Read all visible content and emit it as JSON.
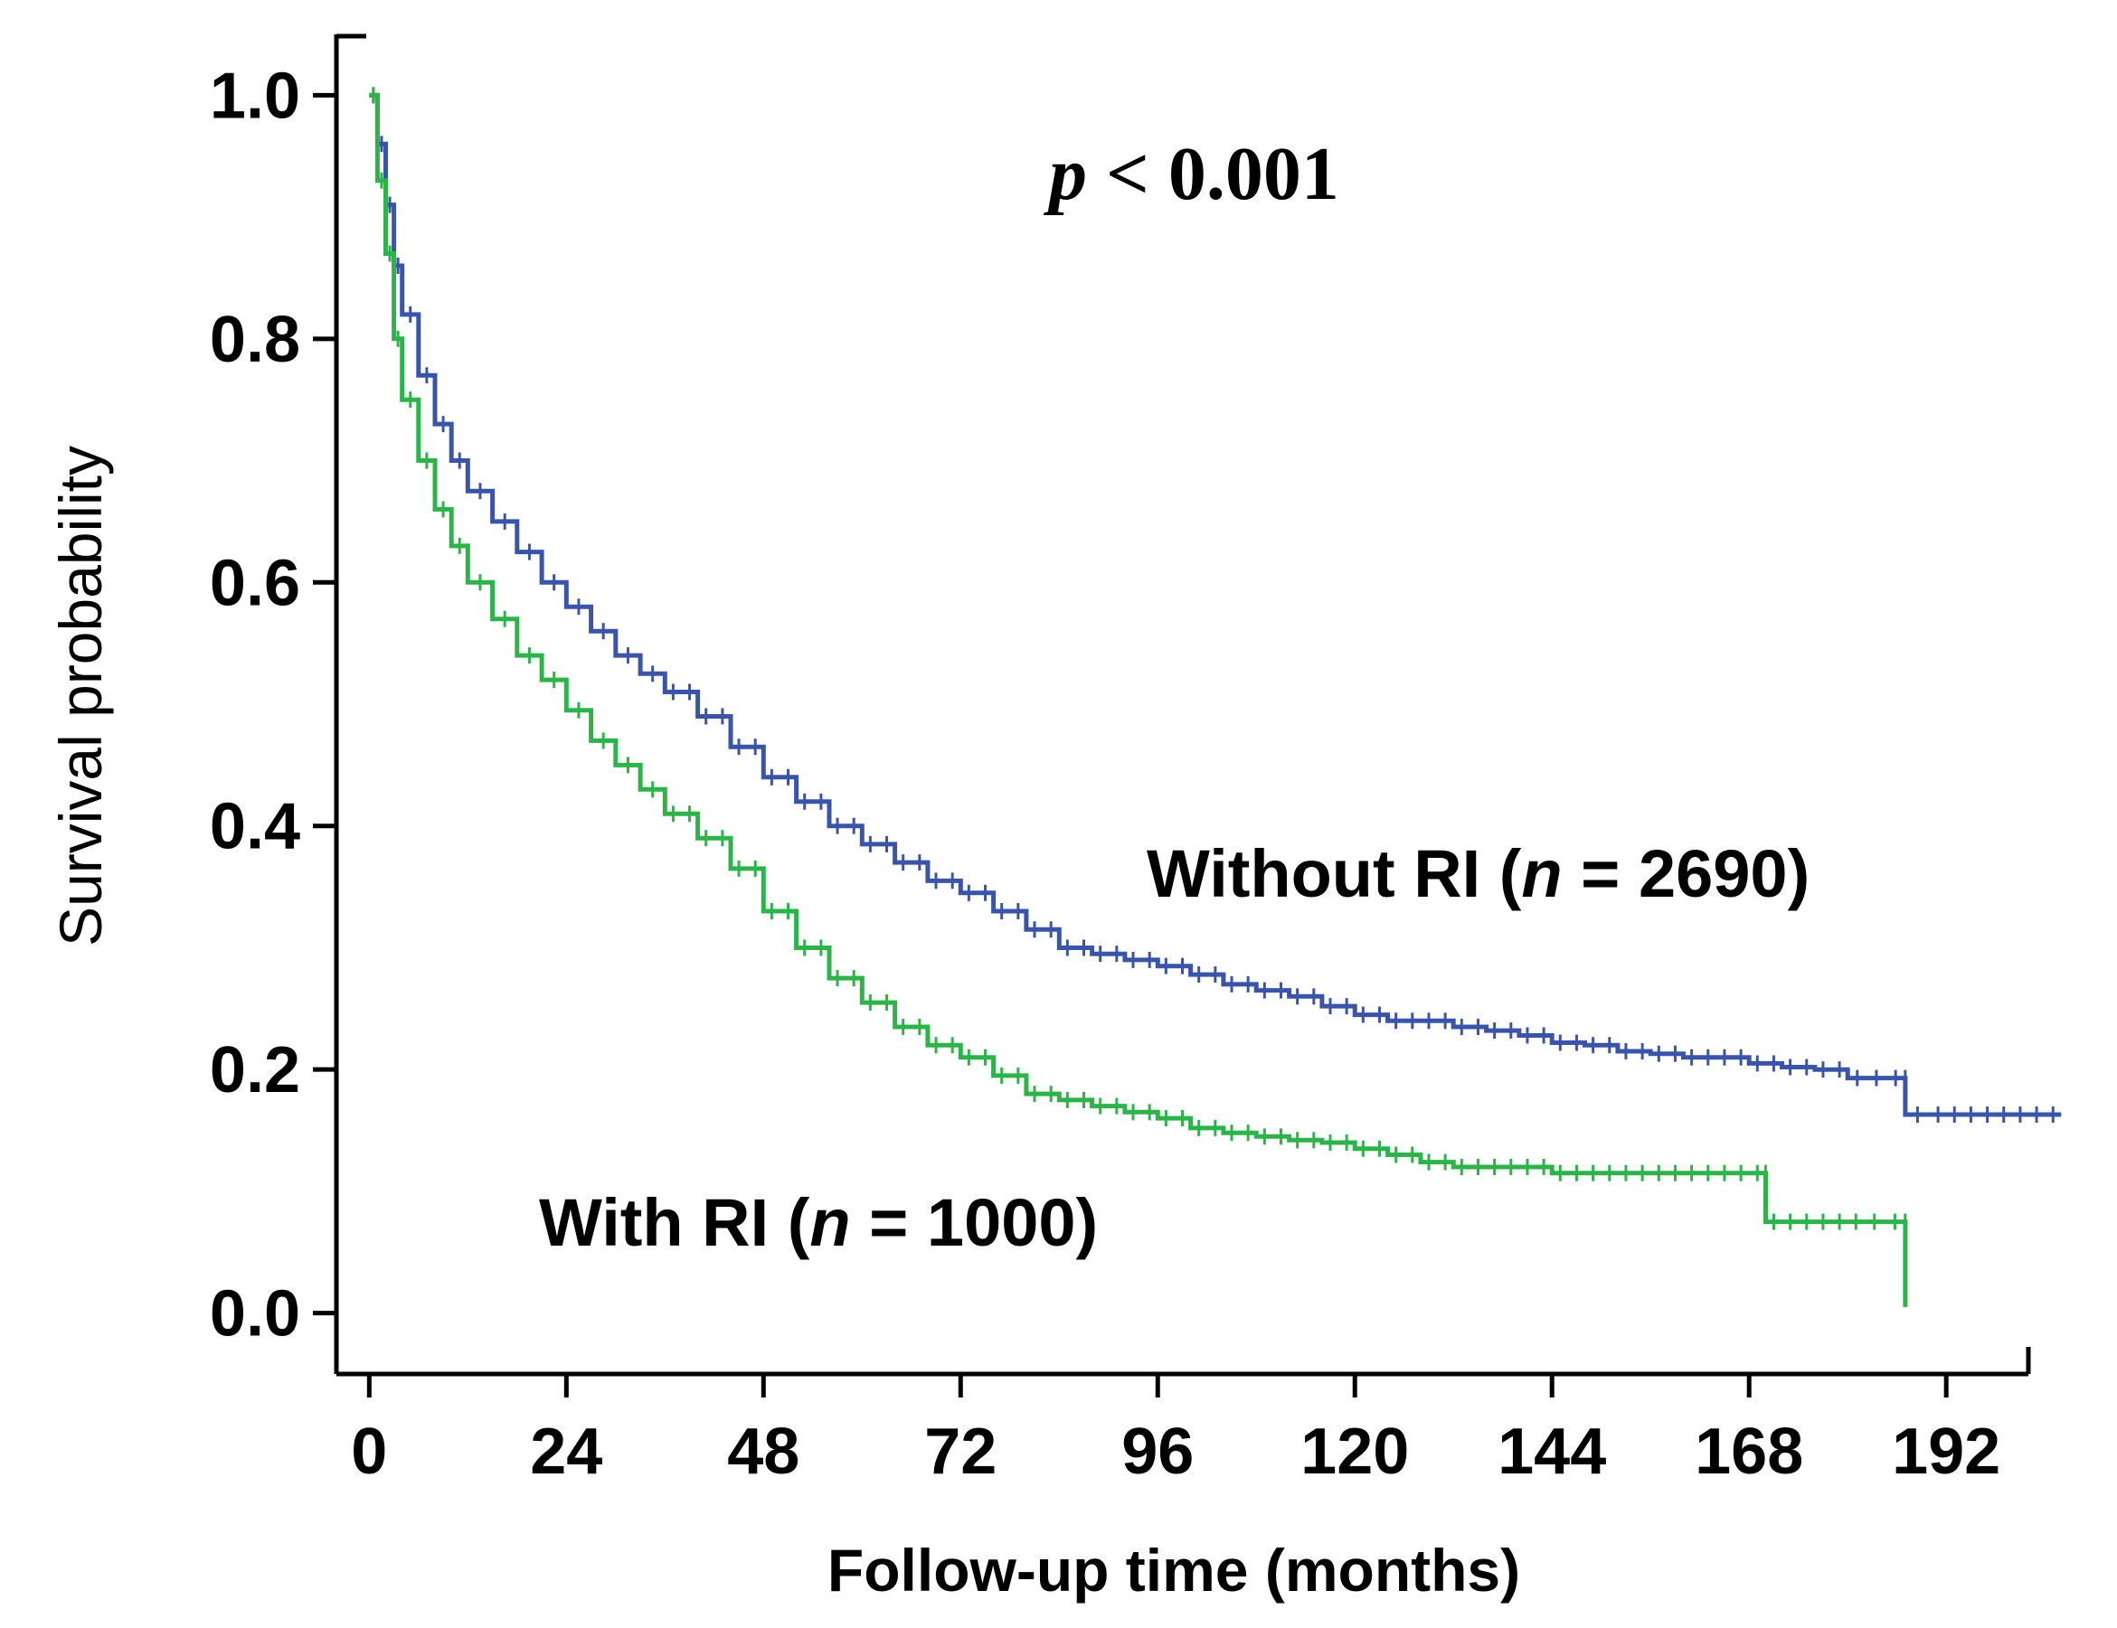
{
  "chart_data": {
    "type": "line",
    "subtype": "kaplan-meier",
    "title": "",
    "xlabel": "Follow-up time (months)",
    "ylabel": "Survival probability",
    "annotation": {
      "p_symbol": "p",
      "p_text": " < 0.001"
    },
    "xlim": [
      -4,
      202
    ],
    "ylim": [
      -0.05,
      1.05
    ],
    "xticks": [
      0,
      24,
      48,
      72,
      96,
      120,
      144,
      168,
      192
    ],
    "yticks": [
      0.0,
      0.2,
      0.4,
      0.6,
      0.8,
      1.0
    ],
    "xtick_labels": [
      "0",
      "24",
      "48",
      "72",
      "96",
      "120",
      "144",
      "168",
      "192"
    ],
    "ytick_labels": [
      "0.0",
      "0.2",
      "0.4",
      "0.6",
      "0.8",
      "1.0"
    ],
    "series": [
      {
        "name": "Without RI",
        "label_prefix": "Without RI (",
        "label_n": "n",
        "label_suffix": " = 2690)",
        "n": 2690,
        "color": "#3a55a8",
        "x": [
          0,
          1,
          2,
          3,
          4,
          6,
          8,
          10,
          12,
          15,
          18,
          21,
          24,
          27,
          30,
          33,
          36,
          40,
          44,
          48,
          52,
          56,
          60,
          64,
          68,
          72,
          76,
          80,
          84,
          88,
          92,
          96,
          100,
          104,
          108,
          112,
          116,
          120,
          124,
          128,
          132,
          136,
          140,
          144,
          148,
          152,
          156,
          160,
          164,
          168,
          172,
          176,
          180,
          187,
          187.01,
          190,
          194,
          198,
          206
        ],
        "y": [
          1.0,
          0.96,
          0.91,
          0.86,
          0.82,
          0.77,
          0.73,
          0.7,
          0.675,
          0.65,
          0.625,
          0.6,
          0.58,
          0.56,
          0.54,
          0.525,
          0.51,
          0.49,
          0.465,
          0.44,
          0.42,
          0.4,
          0.385,
          0.37,
          0.355,
          0.345,
          0.33,
          0.315,
          0.3,
          0.295,
          0.29,
          0.285,
          0.278,
          0.27,
          0.265,
          0.26,
          0.252,
          0.245,
          0.24,
          0.24,
          0.235,
          0.232,
          0.228,
          0.222,
          0.22,
          0.215,
          0.213,
          0.21,
          0.21,
          0.205,
          0.202,
          0.2,
          0.193,
          0.193,
          0.163,
          0.163,
          0.163,
          0.163,
          0.163
        ]
      },
      {
        "name": "With RI",
        "label_prefix": "With RI (",
        "label_n": "n",
        "label_suffix": " = 1000)",
        "n": 1000,
        "color": "#2db34a",
        "x": [
          0,
          1,
          2,
          3,
          4,
          6,
          8,
          10,
          12,
          15,
          18,
          21,
          24,
          27,
          30,
          33,
          36,
          40,
          44,
          48,
          52,
          56,
          60,
          64,
          68,
          72,
          76,
          80,
          84,
          88,
          92,
          96,
          100,
          104,
          108,
          112,
          116,
          120,
          124,
          128,
          132,
          136,
          140,
          144,
          150,
          156,
          162,
          168,
          170,
          170.01,
          176,
          182,
          187,
          187.01
        ],
        "y": [
          1.0,
          0.93,
          0.87,
          0.8,
          0.75,
          0.7,
          0.66,
          0.63,
          0.6,
          0.57,
          0.54,
          0.52,
          0.495,
          0.47,
          0.45,
          0.43,
          0.41,
          0.39,
          0.365,
          0.33,
          0.3,
          0.275,
          0.255,
          0.235,
          0.22,
          0.21,
          0.195,
          0.18,
          0.175,
          0.17,
          0.165,
          0.16,
          0.152,
          0.148,
          0.145,
          0.142,
          0.14,
          0.135,
          0.13,
          0.124,
          0.12,
          0.12,
          0.12,
          0.115,
          0.115,
          0.115,
          0.115,
          0.115,
          0.115,
          0.075,
          0.075,
          0.075,
          0.075,
          0.005
        ]
      }
    ]
  }
}
